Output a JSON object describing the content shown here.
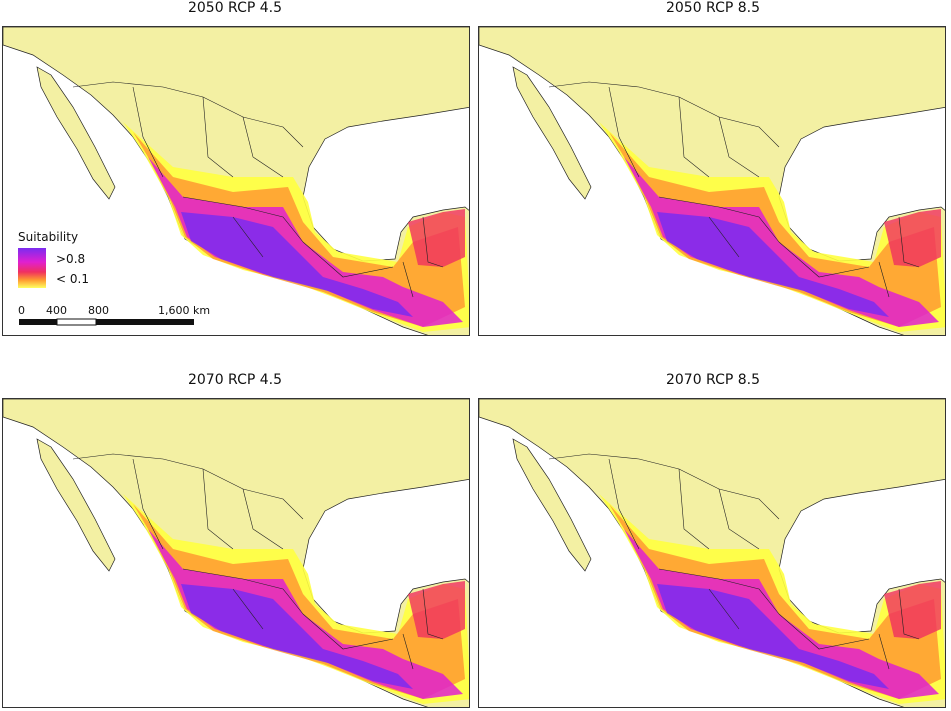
{
  "panels": [
    {
      "title": "2050 RCP 4.5"
    },
    {
      "title": "2050 RCP 8.5"
    },
    {
      "title": "2070 RCP 4.5"
    },
    {
      "title": "2070 RCP 8.5"
    }
  ],
  "legend": {
    "title": "Suitability",
    "high": ">0.8",
    "low": "< 0.1"
  },
  "scale_bar": {
    "labels": [
      "0",
      "400",
      "800",
      "1,600 km"
    ]
  }
}
